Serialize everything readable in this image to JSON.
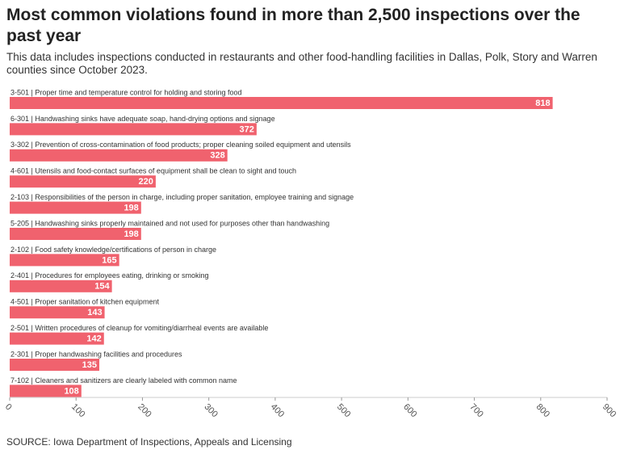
{
  "chart_data": {
    "type": "bar",
    "orientation": "horizontal",
    "title": "Most common violations found in more than 2,500 inspections over the past year",
    "subtitle": "This data includes inspections conducted in restaurants and other food-handling facilities in Dallas, Polk, Story and Warren counties since October 2023.",
    "source": "SOURCE: Iowa Department of Inspections, Appeals and Licensing",
    "categories": [
      "3-501 | Proper time and temperature control for holding and storing food",
      "6-301 | Handwashing sinks have adequate soap, hand-drying options and signage",
      "3-302 | Prevention of cross-contamination of food products; proper cleaning soiled equipment and utensils",
      "4-601 | Utensils and food-contact surfaces of equipment shall be clean to sight and touch",
      "2-103 | Responsibilities of the person in charge, including proper sanitation, employee training and signage",
      "5-205 | Handwashing sinks properly maintained and not used for purposes other than handwashing",
      "2-102 | Food safety knowledge/certifications of person in charge",
      "2-401 | Procedures for employees eating, drinking or smoking",
      "4-501 | Proper sanitation of kitchen equipment",
      "2-501 | Written procedures of cleanup for vomiting/diarrheal events are available",
      "2-301 | Proper handwashing facilities and procedures",
      "7-102 | Cleaners and sanitizers are clearly labeled with common name"
    ],
    "values": [
      818,
      372,
      328,
      220,
      198,
      198,
      165,
      154,
      143,
      142,
      135,
      108
    ],
    "color": "#f0626e",
    "xlim": [
      0,
      900
    ],
    "xticks": [
      0,
      100,
      200,
      300,
      400,
      500,
      600,
      700,
      800,
      900
    ]
  }
}
